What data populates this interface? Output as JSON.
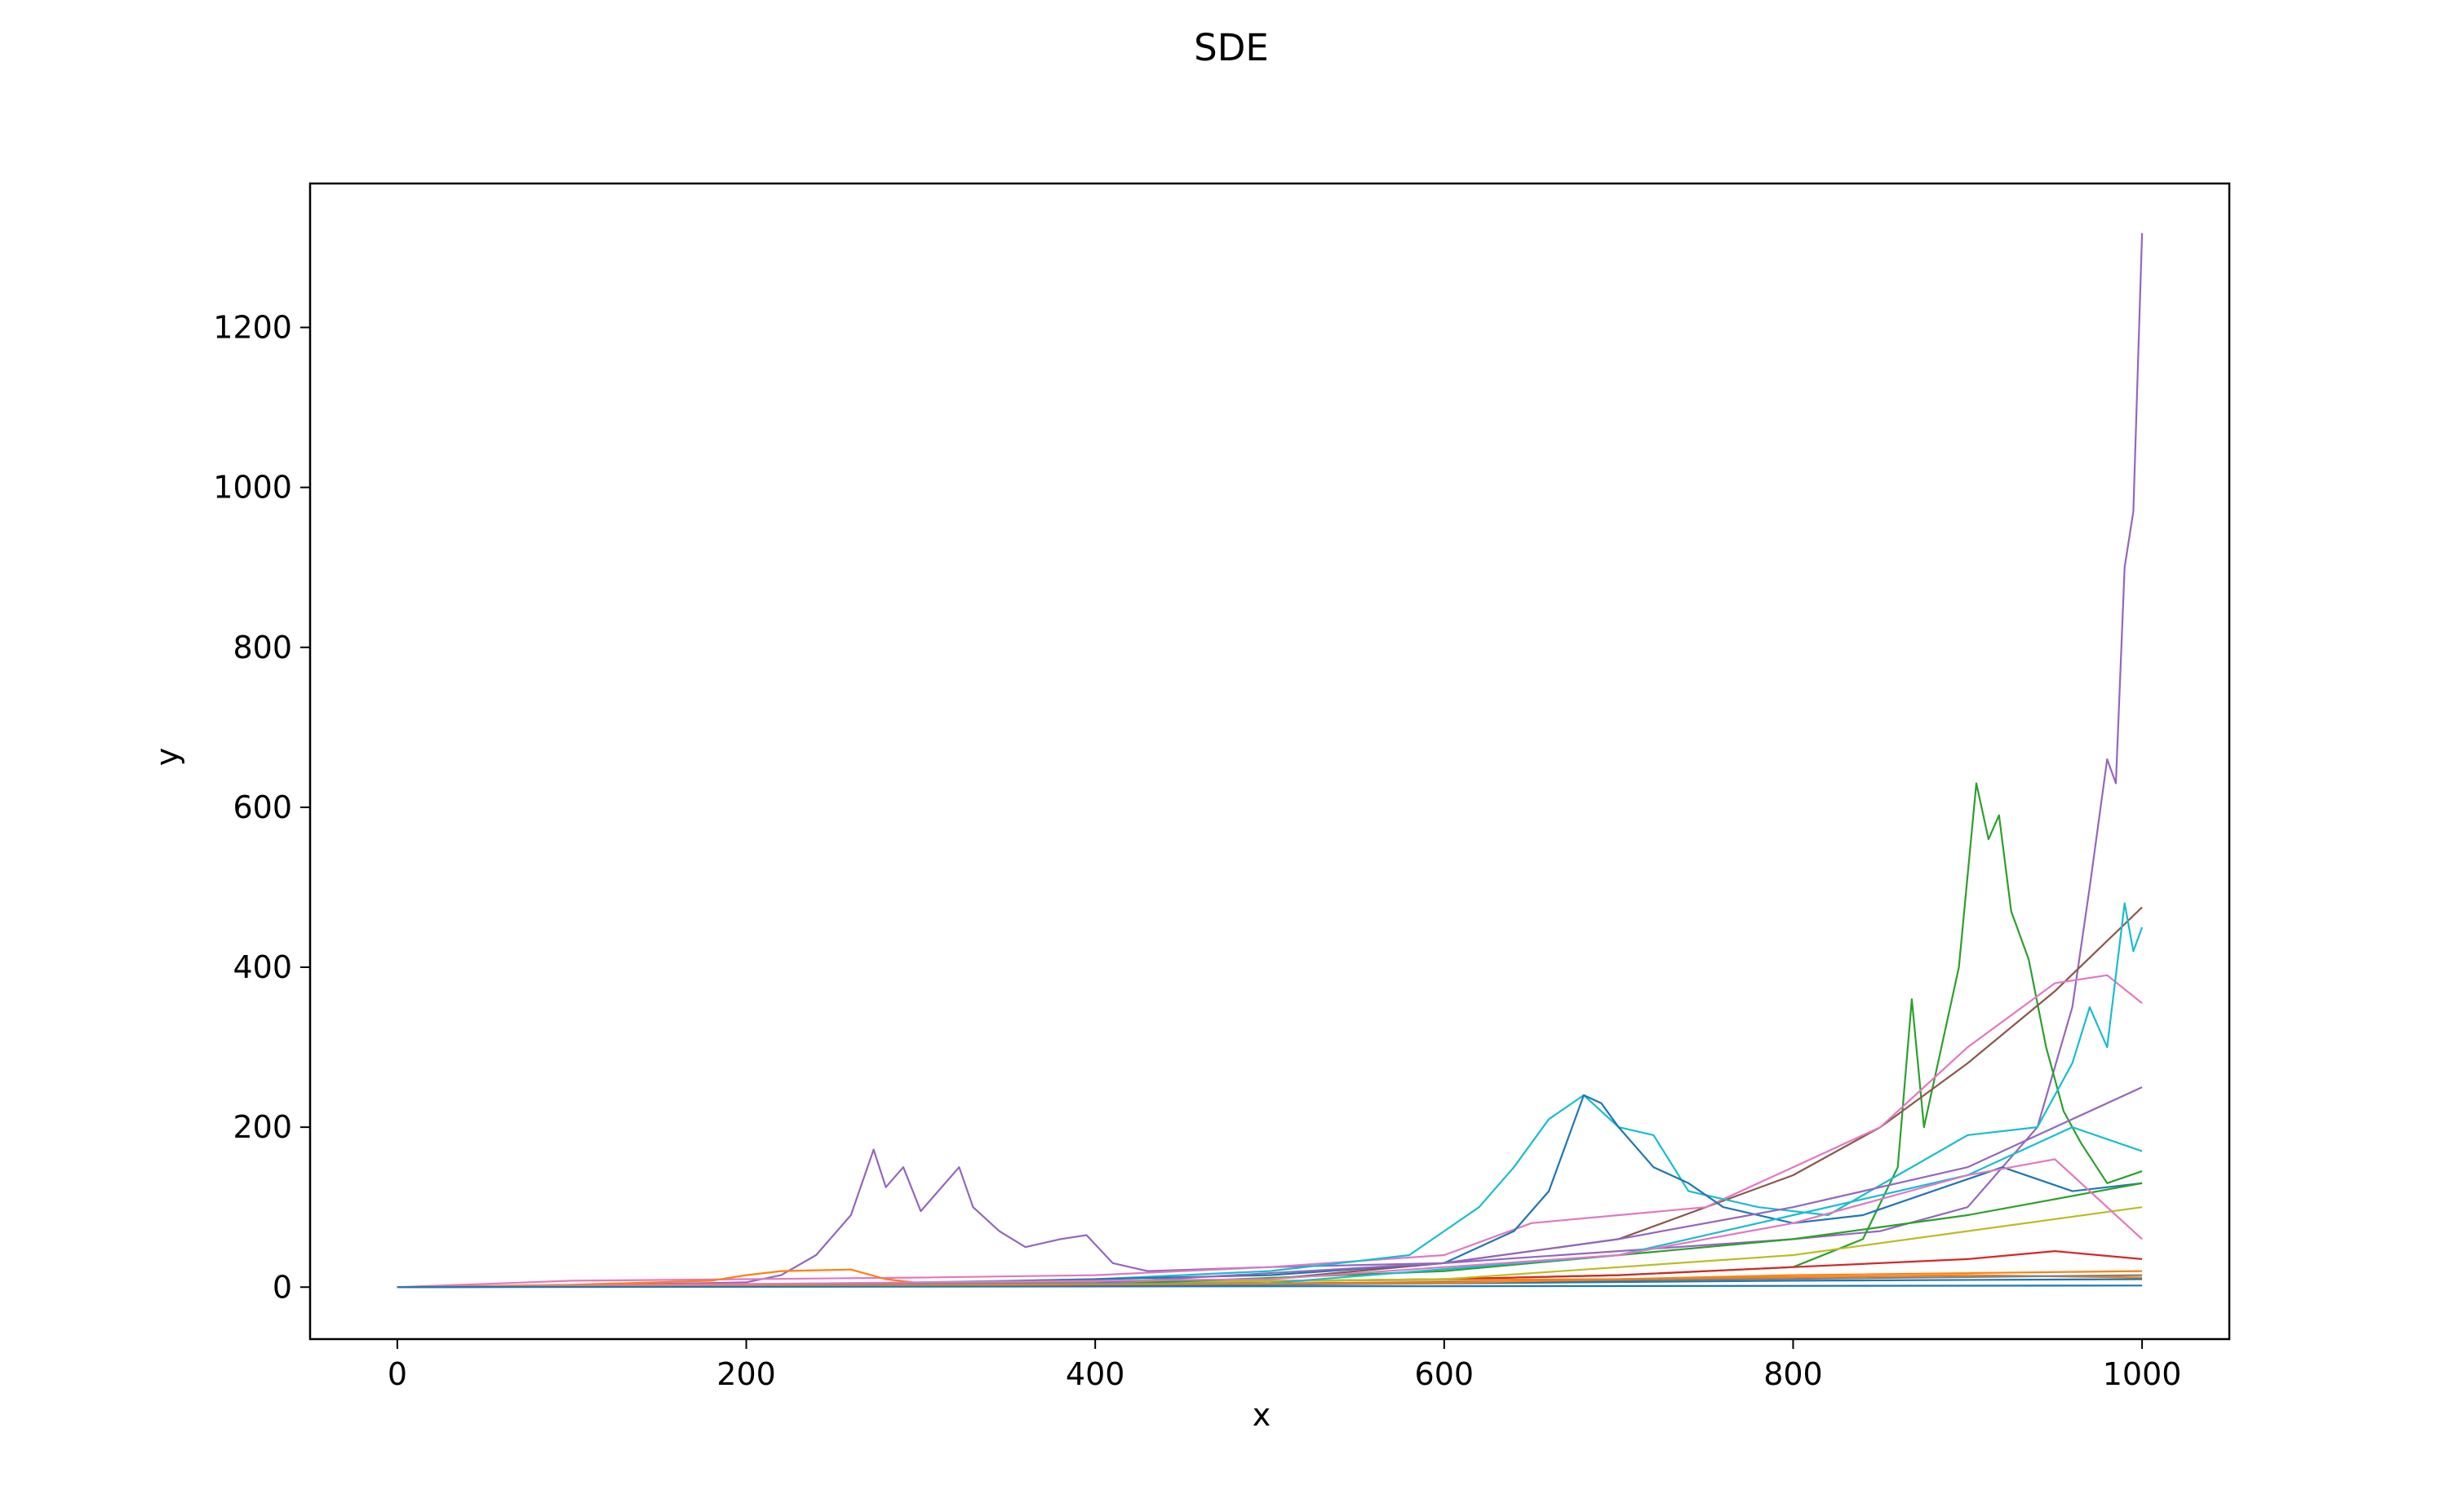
{
  "chart_data": {
    "type": "line",
    "title": "SDE",
    "xlabel": "x",
    "ylabel": "y",
    "xlim": [
      -50,
      1050
    ],
    "ylim": [
      -65,
      1380
    ],
    "xticks": [
      0,
      200,
      400,
      600,
      800,
      1000
    ],
    "yticks": [
      0,
      200,
      400,
      600,
      800,
      1000,
      1200
    ],
    "grid": false,
    "legend": "none",
    "series": [
      {
        "color": "#9467bd",
        "points": [
          [
            0,
            0
          ],
          [
            100,
            2
          ],
          [
            200,
            6
          ],
          [
            220,
            15
          ],
          [
            240,
            40
          ],
          [
            260,
            90
          ],
          [
            273,
            172
          ],
          [
            280,
            125
          ],
          [
            290,
            150
          ],
          [
            300,
            95
          ],
          [
            310,
            120
          ],
          [
            322,
            150
          ],
          [
            330,
            100
          ],
          [
            345,
            70
          ],
          [
            360,
            50
          ],
          [
            380,
            60
          ],
          [
            395,
            65
          ],
          [
            410,
            30
          ],
          [
            430,
            20
          ],
          [
            500,
            25
          ],
          [
            600,
            30
          ],
          [
            700,
            45
          ],
          [
            800,
            60
          ],
          [
            850,
            70
          ],
          [
            900,
            100
          ],
          [
            940,
            200
          ],
          [
            960,
            350
          ],
          [
            970,
            500
          ],
          [
            980,
            660
          ],
          [
            985,
            630
          ],
          [
            990,
            900
          ],
          [
            995,
            970
          ],
          [
            1000,
            1318
          ]
        ]
      },
      {
        "color": "#2ca02c",
        "points": [
          [
            0,
            0
          ],
          [
            200,
            2
          ],
          [
            400,
            5
          ],
          [
            600,
            10
          ],
          [
            700,
            15
          ],
          [
            800,
            25
          ],
          [
            840,
            60
          ],
          [
            860,
            150
          ],
          [
            868,
            360
          ],
          [
            875,
            200
          ],
          [
            885,
            300
          ],
          [
            895,
            400
          ],
          [
            905,
            630
          ],
          [
            912,
            560
          ],
          [
            918,
            590
          ],
          [
            925,
            470
          ],
          [
            935,
            410
          ],
          [
            945,
            300
          ],
          [
            955,
            220
          ],
          [
            965,
            180
          ],
          [
            980,
            130
          ],
          [
            1000,
            145
          ]
        ]
      },
      {
        "color": "#8c564b",
        "points": [
          [
            0,
            0
          ],
          [
            300,
            3
          ],
          [
            500,
            10
          ],
          [
            600,
            30
          ],
          [
            700,
            60
          ],
          [
            800,
            140
          ],
          [
            850,
            200
          ],
          [
            900,
            280
          ],
          [
            950,
            370
          ],
          [
            1000,
            475
          ]
        ]
      },
      {
        "color": "#e377c2",
        "points": [
          [
            0,
            0
          ],
          [
            100,
            8
          ],
          [
            200,
            10
          ],
          [
            300,
            12
          ],
          [
            400,
            15
          ],
          [
            500,
            25
          ],
          [
            600,
            40
          ],
          [
            650,
            80
          ],
          [
            700,
            90
          ],
          [
            750,
            100
          ],
          [
            800,
            150
          ],
          [
            850,
            200
          ],
          [
            900,
            300
          ],
          [
            950,
            380
          ],
          [
            980,
            390
          ],
          [
            1000,
            355
          ]
        ]
      },
      {
        "color": "#17becf",
        "points": [
          [
            0,
            0
          ],
          [
            200,
            2
          ],
          [
            400,
            10
          ],
          [
            500,
            20
          ],
          [
            580,
            40
          ],
          [
            600,
            70
          ],
          [
            620,
            100
          ],
          [
            640,
            150
          ],
          [
            660,
            210
          ],
          [
            680,
            240
          ],
          [
            700,
            200
          ],
          [
            720,
            190
          ],
          [
            740,
            120
          ],
          [
            780,
            100
          ],
          [
            820,
            90
          ],
          [
            860,
            140
          ],
          [
            900,
            190
          ],
          [
            940,
            200
          ],
          [
            960,
            280
          ],
          [
            970,
            350
          ],
          [
            980,
            300
          ],
          [
            990,
            480
          ],
          [
            995,
            420
          ],
          [
            1000,
            450
          ]
        ]
      },
      {
        "color": "#1f77b4",
        "points": [
          [
            0,
            0
          ],
          [
            300,
            5
          ],
          [
            500,
            15
          ],
          [
            600,
            30
          ],
          [
            640,
            70
          ],
          [
            660,
            120
          ],
          [
            680,
            240
          ],
          [
            690,
            230
          ],
          [
            700,
            200
          ],
          [
            720,
            150
          ],
          [
            740,
            130
          ],
          [
            760,
            100
          ],
          [
            800,
            80
          ],
          [
            840,
            90
          ],
          [
            880,
            120
          ],
          [
            920,
            150
          ],
          [
            960,
            120
          ],
          [
            1000,
            130
          ]
        ]
      },
      {
        "color": "#d62728",
        "points": [
          [
            0,
            0
          ],
          [
            200,
            2
          ],
          [
            400,
            5
          ],
          [
            600,
            10
          ],
          [
            700,
            15
          ],
          [
            800,
            25
          ],
          [
            900,
            35
          ],
          [
            950,
            45
          ],
          [
            1000,
            35
          ]
        ]
      },
      {
        "color": "#ff7f0e",
        "points": [
          [
            0,
            0
          ],
          [
            100,
            3
          ],
          [
            180,
            8
          ],
          [
            200,
            15
          ],
          [
            220,
            20
          ],
          [
            260,
            22
          ],
          [
            280,
            10
          ],
          [
            300,
            5
          ],
          [
            500,
            8
          ],
          [
            700,
            10
          ],
          [
            900,
            15
          ],
          [
            1000,
            12
          ]
        ]
      },
      {
        "color": "#bcbd22",
        "points": [
          [
            0,
            0
          ],
          [
            300,
            3
          ],
          [
            600,
            10
          ],
          [
            800,
            40
          ],
          [
            900,
            70
          ],
          [
            1000,
            100
          ]
        ]
      },
      {
        "color": "#7f7f7f",
        "points": [
          [
            0,
            0
          ],
          [
            400,
            3
          ],
          [
            700,
            8
          ],
          [
            1000,
            15
          ]
        ]
      },
      {
        "color": "#9467bd",
        "points": [
          [
            0,
            0
          ],
          [
            400,
            5
          ],
          [
            600,
            30
          ],
          [
            700,
            60
          ],
          [
            800,
            100
          ],
          [
            900,
            150
          ],
          [
            950,
            200
          ],
          [
            1000,
            250
          ]
        ]
      },
      {
        "color": "#2ca02c",
        "points": [
          [
            0,
            0
          ],
          [
            400,
            3
          ],
          [
            600,
            20
          ],
          [
            800,
            60
          ],
          [
            900,
            90
          ],
          [
            1000,
            130
          ]
        ]
      },
      {
        "color": "#17becf",
        "points": [
          [
            0,
            0
          ],
          [
            500,
            5
          ],
          [
            700,
            40
          ],
          [
            800,
            90
          ],
          [
            900,
            140
          ],
          [
            960,
            200
          ],
          [
            1000,
            170
          ]
        ]
      },
      {
        "color": "#e377c2",
        "points": [
          [
            0,
            0
          ],
          [
            500,
            10
          ],
          [
            700,
            40
          ],
          [
            800,
            80
          ],
          [
            900,
            140
          ],
          [
            950,
            160
          ],
          [
            1000,
            60
          ]
        ]
      },
      {
        "color": "#1f77b4",
        "points": [
          [
            0,
            0
          ],
          [
            500,
            3
          ],
          [
            800,
            8
          ],
          [
            1000,
            10
          ]
        ]
      },
      {
        "color": "#ff7f0e",
        "points": [
          [
            0,
            0
          ],
          [
            600,
            5
          ],
          [
            800,
            15
          ],
          [
            1000,
            20
          ]
        ]
      },
      {
        "color": "#1f77b4",
        "points": [
          [
            0,
            0
          ],
          [
            1000,
            2
          ]
        ]
      }
    ]
  }
}
